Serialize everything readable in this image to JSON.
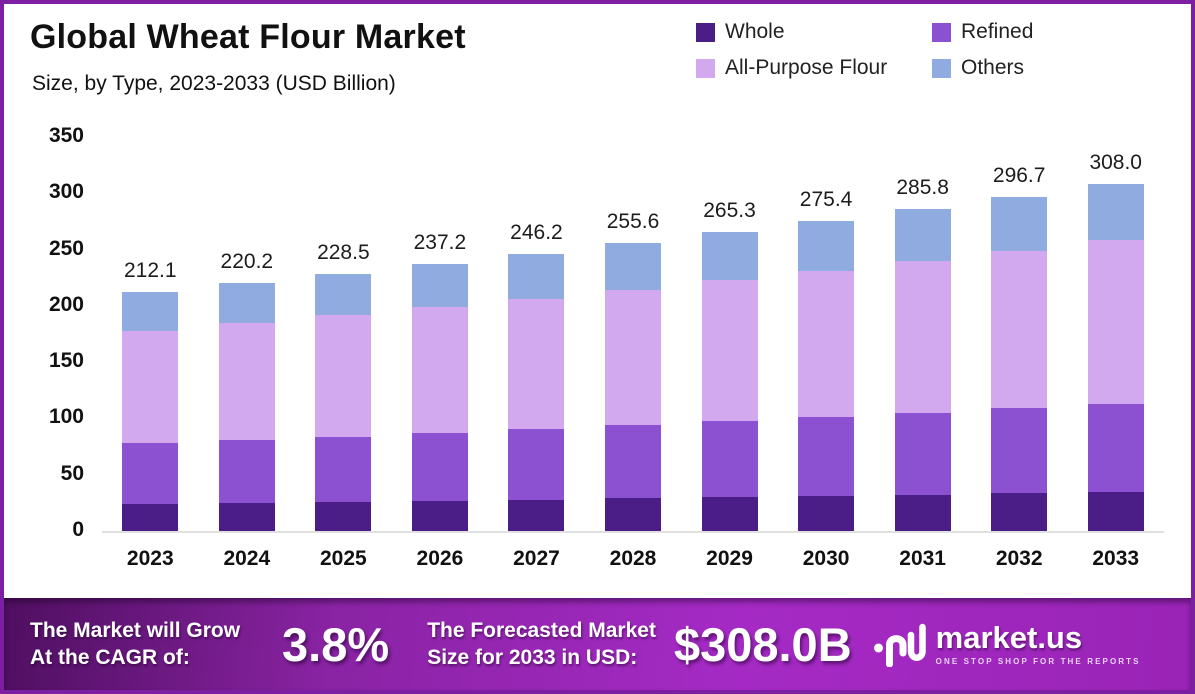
{
  "frame": {
    "border_color": "#7c1fa2",
    "background": "#ffffff"
  },
  "header": {
    "title": "Global Wheat Flour Market",
    "subtitle": "Size, by Type, 2023-2033 (USD Billion)"
  },
  "legend": {
    "items": [
      {
        "label": "Whole",
        "color": "#4a1d87"
      },
      {
        "label": "Refined",
        "color": "#8b51d0"
      },
      {
        "label": "All-Purpose Flour",
        "color": "#d2a9ee"
      },
      {
        "label": "Others",
        "color": "#90abdf"
      }
    ]
  },
  "chart_data": {
    "type": "bar",
    "stacked": true,
    "title": "Global Wheat Flour Market Size, by Type, 2023-2033 (USD Billion)",
    "categories": [
      "2023",
      "2024",
      "2025",
      "2026",
      "2027",
      "2028",
      "2029",
      "2030",
      "2031",
      "2032",
      "2033"
    ],
    "series": [
      {
        "name": "Whole",
        "color": "#4a1d87",
        "values": [
          24.0,
          24.9,
          25.8,
          26.8,
          27.8,
          28.9,
          30.0,
          31.1,
          32.3,
          33.5,
          34.8
        ]
      },
      {
        "name": "Refined",
        "color": "#8b51d0",
        "values": [
          53.9,
          55.9,
          58.0,
          60.2,
          62.5,
          64.9,
          67.4,
          69.9,
          72.6,
          75.4,
          78.2
        ]
      },
      {
        "name": "All-Purpose Flour",
        "color": "#d2a9ee",
        "values": [
          100.1,
          103.9,
          107.9,
          112.0,
          116.2,
          120.6,
          125.2,
          130.0,
          134.9,
          140.0,
          145.4
        ]
      },
      {
        "name": "Others",
        "color": "#90abdf",
        "values": [
          34.1,
          35.5,
          36.8,
          38.2,
          39.7,
          41.2,
          42.7,
          44.4,
          46.0,
          47.8,
          49.6
        ]
      }
    ],
    "totals": [
      212.1,
      220.2,
      228.5,
      237.2,
      246.2,
      255.6,
      265.3,
      275.4,
      285.8,
      296.7,
      308.0
    ],
    "total_labels": [
      "212.1",
      "220.2",
      "228.5",
      "237.2",
      "246.2",
      "255.6",
      "265.3",
      "275.4",
      "285.8",
      "296.7",
      "308.0"
    ],
    "ylim": [
      0,
      350
    ],
    "yticks": [
      0,
      50,
      100,
      150,
      200,
      250,
      300,
      350
    ],
    "grid": false,
    "legend_position": "top-right",
    "xlabel": "",
    "ylabel": ""
  },
  "banner": {
    "cagr_label_line1": "The Market will Grow",
    "cagr_label_line2": "At the CAGR of:",
    "cagr_value": "3.8%",
    "forecast_label_line1": "The Forecasted Market",
    "forecast_label_line2": "Size for 2033 in USD:",
    "forecast_value": "$308.0B",
    "logo_name": "market.us",
    "logo_tagline": "ONE STOP SHOP FOR THE REPORTS",
    "gradient_left": "#4f0f60",
    "gradient_mid": "#8a23a4",
    "gradient_bright": "#a52ac5",
    "gradient_right": "#9a24b6"
  }
}
